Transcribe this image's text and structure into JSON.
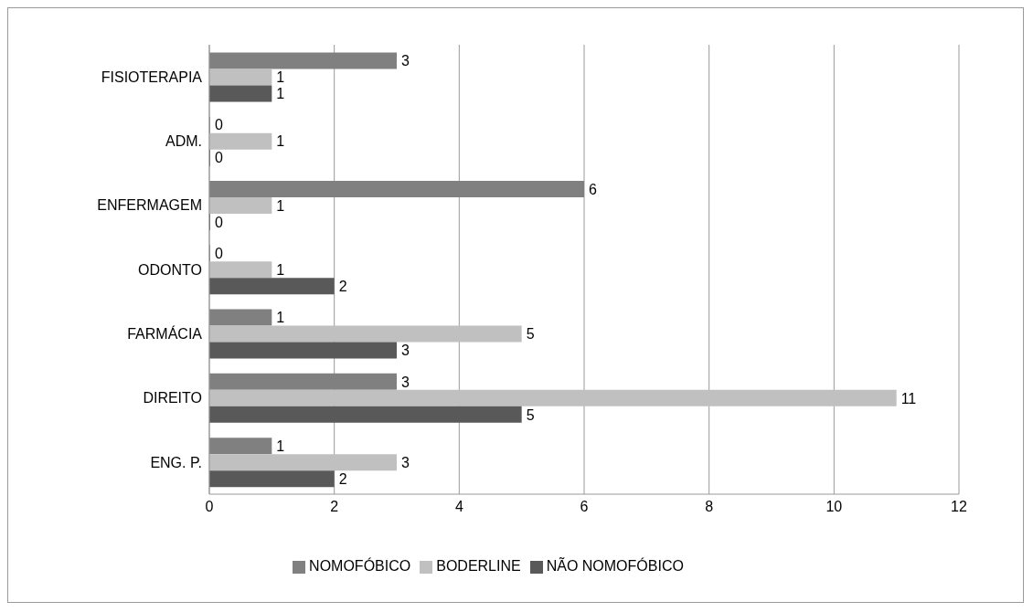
{
  "chart_data": {
    "type": "bar",
    "orientation": "horizontal",
    "categories": [
      "FISIOTERAPIA",
      "ADM.",
      "ENFERMAGEM",
      "ODONTO",
      "FARMÁCIA",
      "DIREITO",
      "ENG. P."
    ],
    "series": [
      {
        "name": "NOMOFÓBICO",
        "color": "#808080",
        "values": [
          3,
          0,
          6,
          0,
          1,
          3,
          1
        ]
      },
      {
        "name": "BODERLINE",
        "color": "#c0c0c0",
        "values": [
          1,
          1,
          1,
          1,
          5,
          11,
          3
        ]
      },
      {
        "name": "NÃO NOMOFÓBICO",
        "color": "#595959",
        "values": [
          1,
          0,
          0,
          2,
          3,
          5,
          2
        ]
      }
    ],
    "xlim": [
      0,
      12
    ],
    "xticks": [
      0,
      2,
      4,
      6,
      8,
      10,
      12
    ],
    "grid": "x",
    "legend": "bottom",
    "data_labels": true
  }
}
